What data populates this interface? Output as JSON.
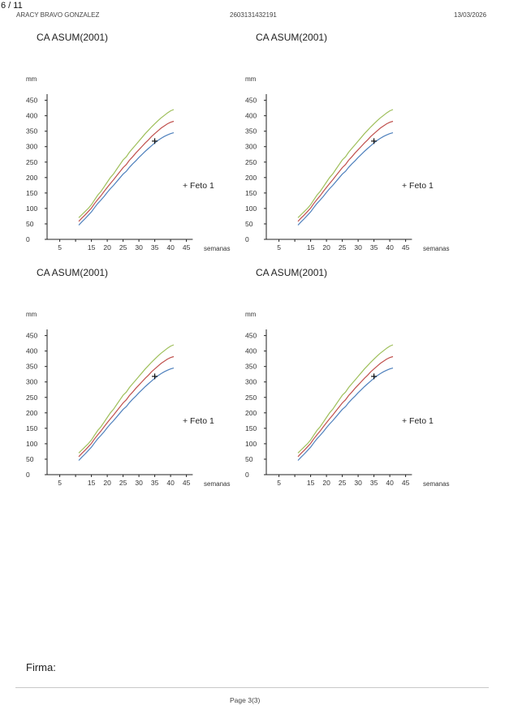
{
  "header": {
    "page_indicator": "6 / 11",
    "patient_name": "ARACY BRAVO GONZALEZ",
    "record_id": "2603131432191",
    "date": "13/03/2026"
  },
  "chart_data": [
    {
      "type": "line",
      "title": "CA ASUM(2001)",
      "xlabel": "semanas",
      "ylabel": "mm",
      "xticks": [
        5,
        10,
        15,
        20,
        25,
        30,
        35,
        40,
        45
      ],
      "xtick_labels": [
        "5",
        "",
        "15",
        "20",
        "25",
        "30",
        "35",
        "40",
        "45"
      ],
      "yticks": [
        0,
        50,
        100,
        150,
        200,
        250,
        300,
        350,
        400,
        450
      ],
      "xlim": [
        1,
        47
      ],
      "ylim": [
        0,
        470
      ],
      "grid": false,
      "legend_label": "+ Feto 1",
      "legend_position": "right",
      "x": [
        11,
        12,
        13,
        14,
        15,
        16,
        17,
        18,
        19,
        20,
        21,
        22,
        23,
        24,
        25,
        26,
        27,
        28,
        29,
        30,
        31,
        32,
        33,
        34,
        35,
        36,
        37,
        38,
        39,
        40,
        41
      ],
      "series": [
        {
          "color": "#9ebf5a",
          "values": [
            70,
            80,
            90,
            100,
            112,
            128,
            143,
            155,
            170,
            185,
            200,
            212,
            227,
            242,
            257,
            267,
            282,
            294,
            306,
            318,
            330,
            342,
            353,
            364,
            374,
            384,
            393,
            401,
            409,
            416,
            420
          ]
        },
        {
          "color": "#c0504d",
          "values": [
            58,
            69,
            79,
            90,
            101,
            116,
            129,
            141,
            155,
            168,
            181,
            193,
            206,
            219,
            232,
            242,
            256,
            267,
            279,
            290,
            301,
            312,
            322,
            333,
            342,
            351,
            360,
            367,
            374,
            379,
            382
          ]
        },
        {
          "color": "#4f81bd",
          "values": [
            46,
            57,
            67,
            78,
            89,
            103,
            116,
            127,
            139,
            152,
            164,
            175,
            187,
            199,
            211,
            220,
            233,
            244,
            254,
            265,
            275,
            285,
            294,
            303,
            312,
            320,
            327,
            333,
            338,
            342,
            345
          ]
        }
      ],
      "points": [
        {
          "x": 35,
          "y": 318,
          "label": "+"
        }
      ]
    },
    {
      "type": "line",
      "title": "CA ASUM(2001)",
      "xlabel": "semanas",
      "ylabel": "mm",
      "xticks": [
        5,
        10,
        15,
        20,
        25,
        30,
        35,
        40,
        45
      ],
      "xtick_labels": [
        "5",
        "",
        "15",
        "20",
        "25",
        "30",
        "35",
        "40",
        "45"
      ],
      "yticks": [
        0,
        50,
        100,
        150,
        200,
        250,
        300,
        350,
        400,
        450
      ],
      "xlim": [
        1,
        47
      ],
      "ylim": [
        0,
        470
      ],
      "grid": false,
      "legend_label": "+ Feto 1",
      "legend_position": "right",
      "x": [
        11,
        12,
        13,
        14,
        15,
        16,
        17,
        18,
        19,
        20,
        21,
        22,
        23,
        24,
        25,
        26,
        27,
        28,
        29,
        30,
        31,
        32,
        33,
        34,
        35,
        36,
        37,
        38,
        39,
        40,
        41
      ],
      "series": [
        {
          "color": "#9ebf5a",
          "values": [
            70,
            80,
            90,
            100,
            112,
            128,
            143,
            155,
            170,
            185,
            200,
            212,
            227,
            242,
            257,
            267,
            282,
            294,
            306,
            318,
            330,
            342,
            353,
            364,
            374,
            384,
            393,
            401,
            409,
            416,
            420
          ]
        },
        {
          "color": "#c0504d",
          "values": [
            58,
            69,
            79,
            90,
            101,
            116,
            129,
            141,
            155,
            168,
            181,
            193,
            206,
            219,
            232,
            242,
            256,
            267,
            279,
            290,
            301,
            312,
            322,
            333,
            342,
            351,
            360,
            367,
            374,
            379,
            382
          ]
        },
        {
          "color": "#4f81bd",
          "values": [
            46,
            57,
            67,
            78,
            89,
            103,
            116,
            127,
            139,
            152,
            164,
            175,
            187,
            199,
            211,
            220,
            233,
            244,
            254,
            265,
            275,
            285,
            294,
            303,
            312,
            320,
            327,
            333,
            338,
            342,
            345
          ]
        }
      ],
      "points": [
        {
          "x": 35,
          "y": 318,
          "label": "+"
        }
      ]
    },
    {
      "type": "line",
      "title": "CA ASUM(2001)",
      "xlabel": "semanas",
      "ylabel": "mm",
      "xticks": [
        5,
        10,
        15,
        20,
        25,
        30,
        35,
        40,
        45
      ],
      "xtick_labels": [
        "5",
        "",
        "15",
        "20",
        "25",
        "30",
        "35",
        "40",
        "45"
      ],
      "yticks": [
        0,
        50,
        100,
        150,
        200,
        250,
        300,
        350,
        400,
        450
      ],
      "xlim": [
        1,
        47
      ],
      "ylim": [
        0,
        470
      ],
      "grid": false,
      "legend_label": "+ Feto 1",
      "legend_position": "right",
      "x": [
        11,
        12,
        13,
        14,
        15,
        16,
        17,
        18,
        19,
        20,
        21,
        22,
        23,
        24,
        25,
        26,
        27,
        28,
        29,
        30,
        31,
        32,
        33,
        34,
        35,
        36,
        37,
        38,
        39,
        40,
        41
      ],
      "series": [
        {
          "color": "#9ebf5a",
          "values": [
            70,
            80,
            90,
            100,
            112,
            128,
            143,
            155,
            170,
            185,
            200,
            212,
            227,
            242,
            257,
            267,
            282,
            294,
            306,
            318,
            330,
            342,
            353,
            364,
            374,
            384,
            393,
            401,
            409,
            416,
            420
          ]
        },
        {
          "color": "#c0504d",
          "values": [
            58,
            69,
            79,
            90,
            101,
            116,
            129,
            141,
            155,
            168,
            181,
            193,
            206,
            219,
            232,
            242,
            256,
            267,
            279,
            290,
            301,
            312,
            322,
            333,
            342,
            351,
            360,
            367,
            374,
            379,
            382
          ]
        },
        {
          "color": "#4f81bd",
          "values": [
            46,
            57,
            67,
            78,
            89,
            103,
            116,
            127,
            139,
            152,
            164,
            175,
            187,
            199,
            211,
            220,
            233,
            244,
            254,
            265,
            275,
            285,
            294,
            303,
            312,
            320,
            327,
            333,
            338,
            342,
            345
          ]
        }
      ],
      "points": [
        {
          "x": 35,
          "y": 318,
          "label": "+"
        }
      ]
    },
    {
      "type": "line",
      "title": "CA ASUM(2001)",
      "xlabel": "semanas",
      "ylabel": "mm",
      "xticks": [
        5,
        10,
        15,
        20,
        25,
        30,
        35,
        40,
        45
      ],
      "xtick_labels": [
        "5",
        "",
        "15",
        "20",
        "25",
        "30",
        "35",
        "40",
        "45"
      ],
      "yticks": [
        0,
        50,
        100,
        150,
        200,
        250,
        300,
        350,
        400,
        450
      ],
      "xlim": [
        1,
        47
      ],
      "ylim": [
        0,
        470
      ],
      "grid": false,
      "legend_label": "+ Feto 1",
      "legend_position": "right",
      "x": [
        11,
        12,
        13,
        14,
        15,
        16,
        17,
        18,
        19,
        20,
        21,
        22,
        23,
        24,
        25,
        26,
        27,
        28,
        29,
        30,
        31,
        32,
        33,
        34,
        35,
        36,
        37,
        38,
        39,
        40,
        41
      ],
      "series": [
        {
          "color": "#9ebf5a",
          "values": [
            70,
            80,
            90,
            100,
            112,
            128,
            143,
            155,
            170,
            185,
            200,
            212,
            227,
            242,
            257,
            267,
            282,
            294,
            306,
            318,
            330,
            342,
            353,
            364,
            374,
            384,
            393,
            401,
            409,
            416,
            420
          ]
        },
        {
          "color": "#c0504d",
          "values": [
            58,
            69,
            79,
            90,
            101,
            116,
            129,
            141,
            155,
            168,
            181,
            193,
            206,
            219,
            232,
            242,
            256,
            267,
            279,
            290,
            301,
            312,
            322,
            333,
            342,
            351,
            360,
            367,
            374,
            379,
            382
          ]
        },
        {
          "color": "#4f81bd",
          "values": [
            46,
            57,
            67,
            78,
            89,
            103,
            116,
            127,
            139,
            152,
            164,
            175,
            187,
            199,
            211,
            220,
            233,
            244,
            254,
            265,
            275,
            285,
            294,
            303,
            312,
            320,
            327,
            333,
            338,
            342,
            345
          ]
        }
      ],
      "points": [
        {
          "x": 35,
          "y": 318,
          "label": "+"
        }
      ]
    }
  ],
  "signature": {
    "label": "Firma:"
  },
  "footer": {
    "page_label": "Page 3(3)"
  }
}
